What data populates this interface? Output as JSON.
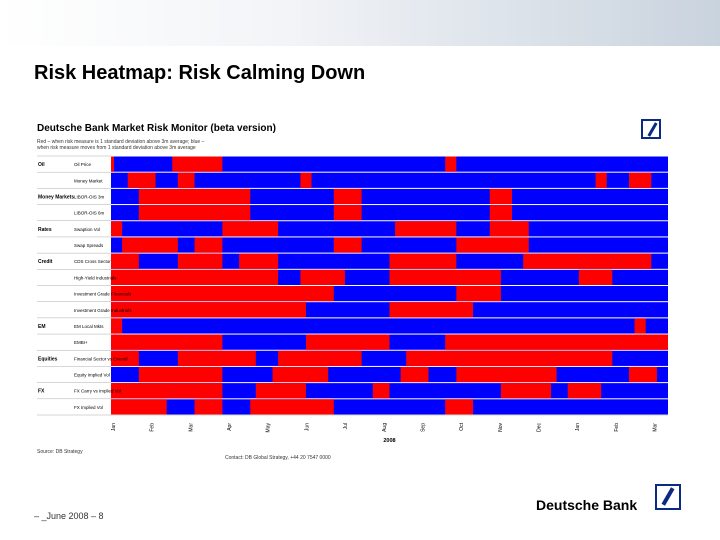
{
  "slide": {
    "title": "Risk Heatmap: Risk Calming Down",
    "footer_date": "– _June 2008 – 8",
    "brand": "Deutsche Bank"
  },
  "monitor": {
    "title": "Deutsche Bank Market Risk Monitor (beta version)",
    "description": "Red – when risk measure is 1 standard deviation above 3m average; blue – when risk measure moves from 1 standard deviation above 3m average",
    "source": "Source: DB Strategy",
    "contact": "Contact: DB Global Strategy, +44 20 7547 0000"
  },
  "colors": {
    "risk_high": "#ff0000",
    "risk_low": "#0000ff",
    "brand_blue": "#0b2a82"
  },
  "chart_data": {
    "type": "heatmap",
    "legend": {
      "red": "risk measure 1 sd above 3m average",
      "blue": "otherwise"
    },
    "x_labels": [
      "Jan",
      "Feb",
      "Mar",
      "Apr",
      "May",
      "Jun",
      "Jul",
      "Aug",
      "Sep",
      "Oct",
      "Nov",
      "Dec",
      "Jan",
      "Feb",
      "Mar"
    ],
    "year_label": "2008",
    "rows": [
      {
        "group": "Oil",
        "label": "Oil Price",
        "segments": [
          [
            0.0,
            0.0
          ],
          [
            0.11,
            0.2
          ],
          [
            0.6,
            0.62
          ]
        ]
      },
      {
        "group": "",
        "label": "Money Market",
        "segments": [
          [
            0.03,
            0.08
          ],
          [
            0.12,
            0.15
          ],
          [
            0.34,
            0.36
          ],
          [
            0.87,
            0.89
          ],
          [
            0.93,
            0.97
          ]
        ]
      },
      {
        "group": "Money Markets",
        "label": "LIBOR-OIS 3m",
        "segments": [
          [
            0.05,
            0.25
          ],
          [
            0.4,
            0.45
          ],
          [
            0.68,
            0.72
          ]
        ]
      },
      {
        "group": "",
        "label": "LIBOR-OIS 6m",
        "segments": [
          [
            0.05,
            0.25
          ],
          [
            0.4,
            0.45
          ],
          [
            0.68,
            0.72
          ]
        ]
      },
      {
        "group": "Rates",
        "label": "Swaption Vol",
        "segments": [
          [
            0.0,
            0.02
          ],
          [
            0.2,
            0.3
          ],
          [
            0.51,
            0.62
          ],
          [
            0.68,
            0.75
          ]
        ]
      },
      {
        "group": "",
        "label": "Swap Spreads",
        "segments": [
          [
            0.02,
            0.12
          ],
          [
            0.15,
            0.2
          ],
          [
            0.4,
            0.45
          ],
          [
            0.62,
            0.75
          ]
        ]
      },
      {
        "group": "Credit",
        "label": "CDS Cross Sector",
        "segments": [
          [
            0.0,
            0.05
          ],
          [
            0.12,
            0.2
          ],
          [
            0.23,
            0.3
          ],
          [
            0.5,
            0.62
          ],
          [
            0.74,
            0.97
          ]
        ]
      },
      {
        "group": "",
        "label": "High-Yield Industrials",
        "segments": [
          [
            0.0,
            0.3
          ],
          [
            0.34,
            0.42
          ],
          [
            0.5,
            0.7
          ],
          [
            0.84,
            0.9
          ]
        ]
      },
      {
        "group": "",
        "label": "Investment Grade Financials",
        "segments": [
          [
            0.0,
            0.4
          ],
          [
            0.62,
            0.7
          ]
        ]
      },
      {
        "group": "",
        "label": "Investment Grade Industrials",
        "segments": [
          [
            0.0,
            0.35
          ],
          [
            0.5,
            0.65
          ]
        ]
      },
      {
        "group": "EM",
        "label": "EM Local Mkts",
        "segments": [
          [
            0.0,
            0.02
          ],
          [
            0.94,
            0.96
          ]
        ]
      },
      {
        "group": "",
        "label": "EMBI+",
        "segments": [
          [
            0.0,
            0.2
          ],
          [
            0.35,
            0.5
          ],
          [
            0.6,
            1.0
          ]
        ]
      },
      {
        "group": "Equities",
        "label": "Financial Sector vs Overall",
        "segments": [
          [
            0.0,
            0.05
          ],
          [
            0.12,
            0.26
          ],
          [
            0.3,
            0.45
          ],
          [
            0.53,
            0.9
          ]
        ]
      },
      {
        "group": "",
        "label": "Equity Implied Vol",
        "segments": [
          [
            0.05,
            0.2
          ],
          [
            0.29,
            0.39
          ],
          [
            0.52,
            0.57
          ],
          [
            0.62,
            0.8
          ],
          [
            0.93,
            0.98
          ]
        ]
      },
      {
        "group": "FX",
        "label": "FX Carry vs Implied Vol",
        "segments": [
          [
            0.0,
            0.2
          ],
          [
            0.26,
            0.35
          ],
          [
            0.47,
            0.5
          ],
          [
            0.7,
            0.79
          ],
          [
            0.82,
            0.88
          ]
        ]
      },
      {
        "group": "",
        "label": "FX Implied Vol",
        "segments": [
          [
            0.0,
            0.1
          ],
          [
            0.15,
            0.2
          ],
          [
            0.25,
            0.4
          ],
          [
            0.6,
            0.65
          ]
        ]
      }
    ]
  }
}
